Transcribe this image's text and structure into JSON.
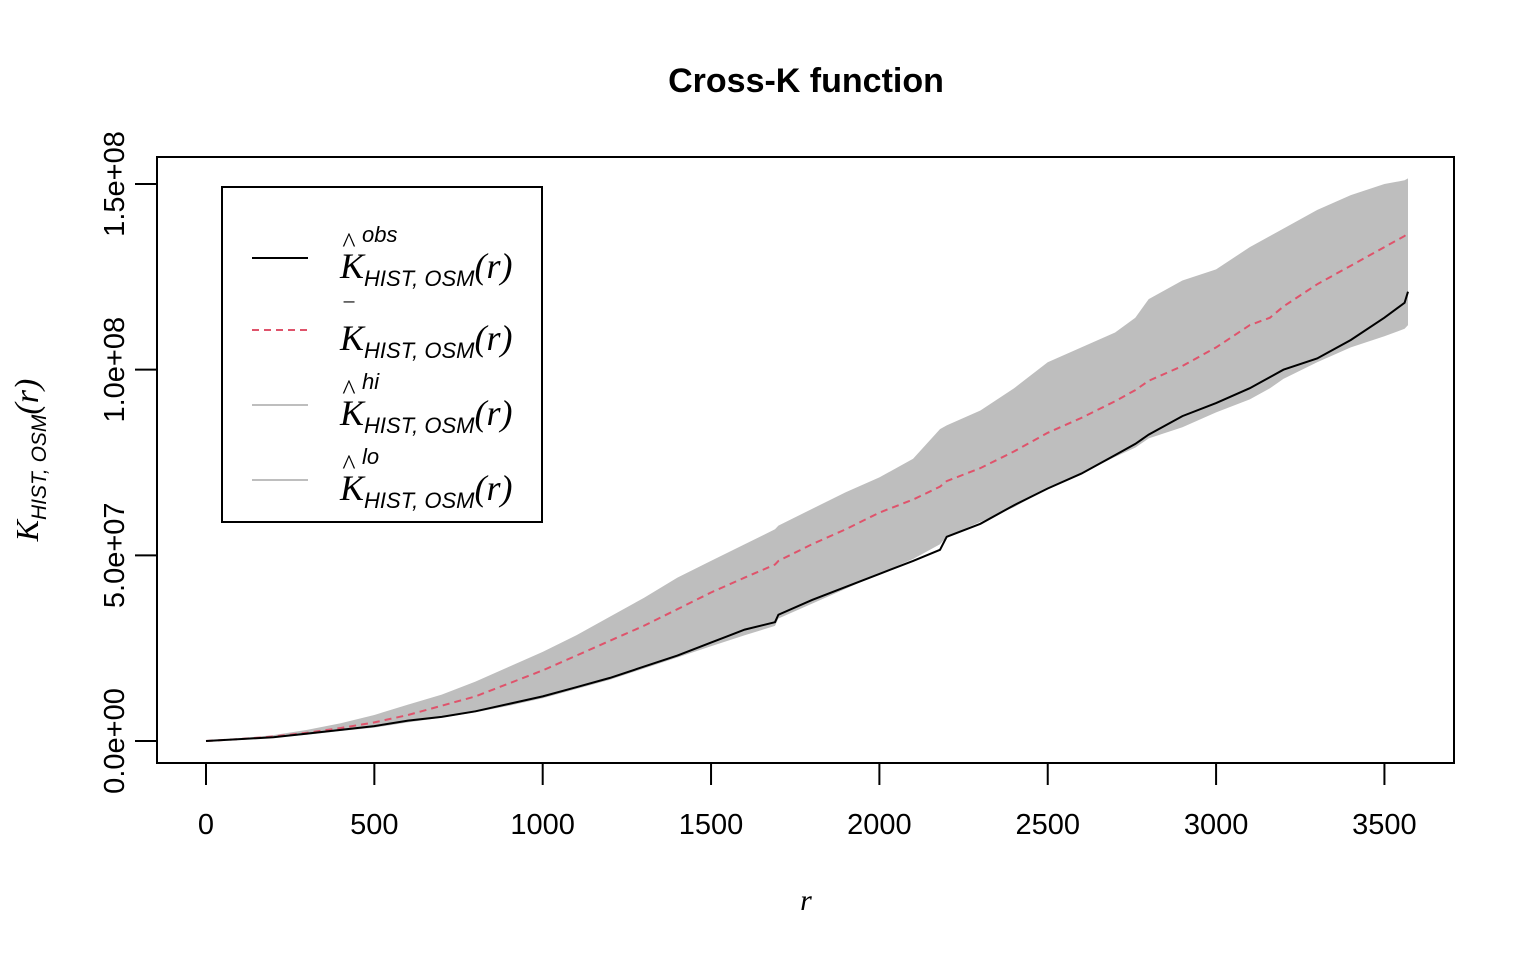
{
  "chart_data": {
    "type": "line",
    "title": "Cross-K function",
    "xlabel": "r",
    "ylabel": {
      "main": "K",
      "subscript": "HIST, OSM",
      "arg": "(r)"
    },
    "xlim": [
      0,
      3570
    ],
    "ylim": [
      0,
      150000000
    ],
    "x_ticks": [
      0,
      500,
      1000,
      1500,
      2000,
      2500,
      3000,
      3500
    ],
    "x_tick_labels": [
      "0",
      "500",
      "1000",
      "1500",
      "2000",
      "2500",
      "3000",
      "3500"
    ],
    "y_ticks": [
      0,
      50000000,
      100000000,
      150000000
    ],
    "y_tick_labels": [
      "0.0e+00",
      "5.0e+07",
      "1.0e+08",
      "1.5e+08"
    ],
    "grid": false,
    "legend_position": "top-left",
    "x": [
      0,
      100,
      200,
      300,
      400,
      500,
      600,
      700,
      800,
      900,
      1000,
      1100,
      1200,
      1300,
      1400,
      1500,
      1600,
      1690,
      1700,
      1800,
      1900,
      2000,
      2100,
      2180,
      2200,
      2300,
      2400,
      2500,
      2600,
      2700,
      2760,
      2800,
      2900,
      3000,
      3100,
      3160,
      3200,
      3300,
      3400,
      3500,
      3560,
      3570
    ],
    "series": [
      {
        "key": "obs",
        "symbol": "K",
        "hat": "^",
        "superscript": "obs",
        "subscript": "HIST, OSM",
        "arg": "(r)",
        "style": "solid",
        "color": "#000000",
        "values": [
          0,
          500000,
          1000000,
          2000000,
          3000000,
          4000000,
          5500000,
          6500000,
          8000000,
          10000000,
          12000000,
          14500000,
          17000000,
          20000000,
          23000000,
          26500000,
          30000000,
          32000000,
          34000000,
          38000000,
          41500000,
          45000000,
          48500000,
          51500000,
          55000000,
          58500000,
          63500000,
          68000000,
          72000000,
          77000000,
          80000000,
          82500000,
          87500000,
          91000000,
          95000000,
          98000000,
          100000000,
          103000000,
          108000000,
          114000000,
          118000000,
          121000000
        ]
      },
      {
        "key": "mean",
        "symbol": "K",
        "hat": "‾",
        "superscript": "",
        "subscript": "HIST, OSM",
        "arg": "(r)",
        "style": "dashed",
        "color": "#DF536B",
        "values": [
          0,
          500000,
          1200000,
          2200000,
          3500000,
          5000000,
          7000000,
          9500000,
          12000000,
          15500000,
          19000000,
          23000000,
          27000000,
          31000000,
          35500000,
          40000000,
          44000000,
          47500000,
          48500000,
          53000000,
          57000000,
          61500000,
          65000000,
          68500000,
          70000000,
          73500000,
          78000000,
          83000000,
          87000000,
          91500000,
          94500000,
          97000000,
          101000000,
          106000000,
          112000000,
          114000000,
          117000000,
          123000000,
          128000000,
          133000000,
          136000000,
          137000000
        ]
      },
      {
        "key": "hi",
        "symbol": "K",
        "hat": "^",
        "superscript": "hi",
        "subscript": "HIST, OSM",
        "arg": "(r)",
        "style": "band",
        "color": "#BEBEBE",
        "values": [
          0,
          700000,
          1600000,
          3000000,
          4800000,
          7000000,
          9800000,
          12500000,
          16000000,
          20000000,
          24000000,
          28500000,
          33500000,
          38500000,
          44000000,
          48500000,
          53000000,
          57000000,
          58000000,
          62500000,
          67000000,
          71000000,
          76000000,
          84000000,
          85000000,
          89000000,
          95000000,
          102000000,
          106000000,
          110000000,
          114000000,
          119000000,
          124000000,
          127000000,
          133000000,
          136000000,
          138000000,
          143000000,
          147000000,
          150000000,
          151000000,
          151500000
        ]
      },
      {
        "key": "lo",
        "symbol": "K",
        "hat": "^",
        "superscript": "lo",
        "subscript": "HIST, OSM",
        "arg": "(r)",
        "style": "band",
        "color": "#BEBEBE",
        "values": [
          0,
          400000,
          900000,
          1700000,
          2700000,
          3600000,
          5000000,
          6300000,
          7700000,
          9500000,
          11500000,
          14000000,
          16500000,
          19500000,
          22500000,
          25500000,
          28500000,
          31000000,
          33000000,
          37000000,
          41000000,
          45000000,
          49000000,
          53000000,
          55000000,
          59000000,
          63000000,
          68000000,
          72000000,
          76500000,
          79000000,
          81500000,
          84500000,
          88500000,
          92000000,
          95000000,
          97500000,
          102000000,
          106000000,
          109000000,
          111000000,
          112000000
        ]
      }
    ]
  }
}
